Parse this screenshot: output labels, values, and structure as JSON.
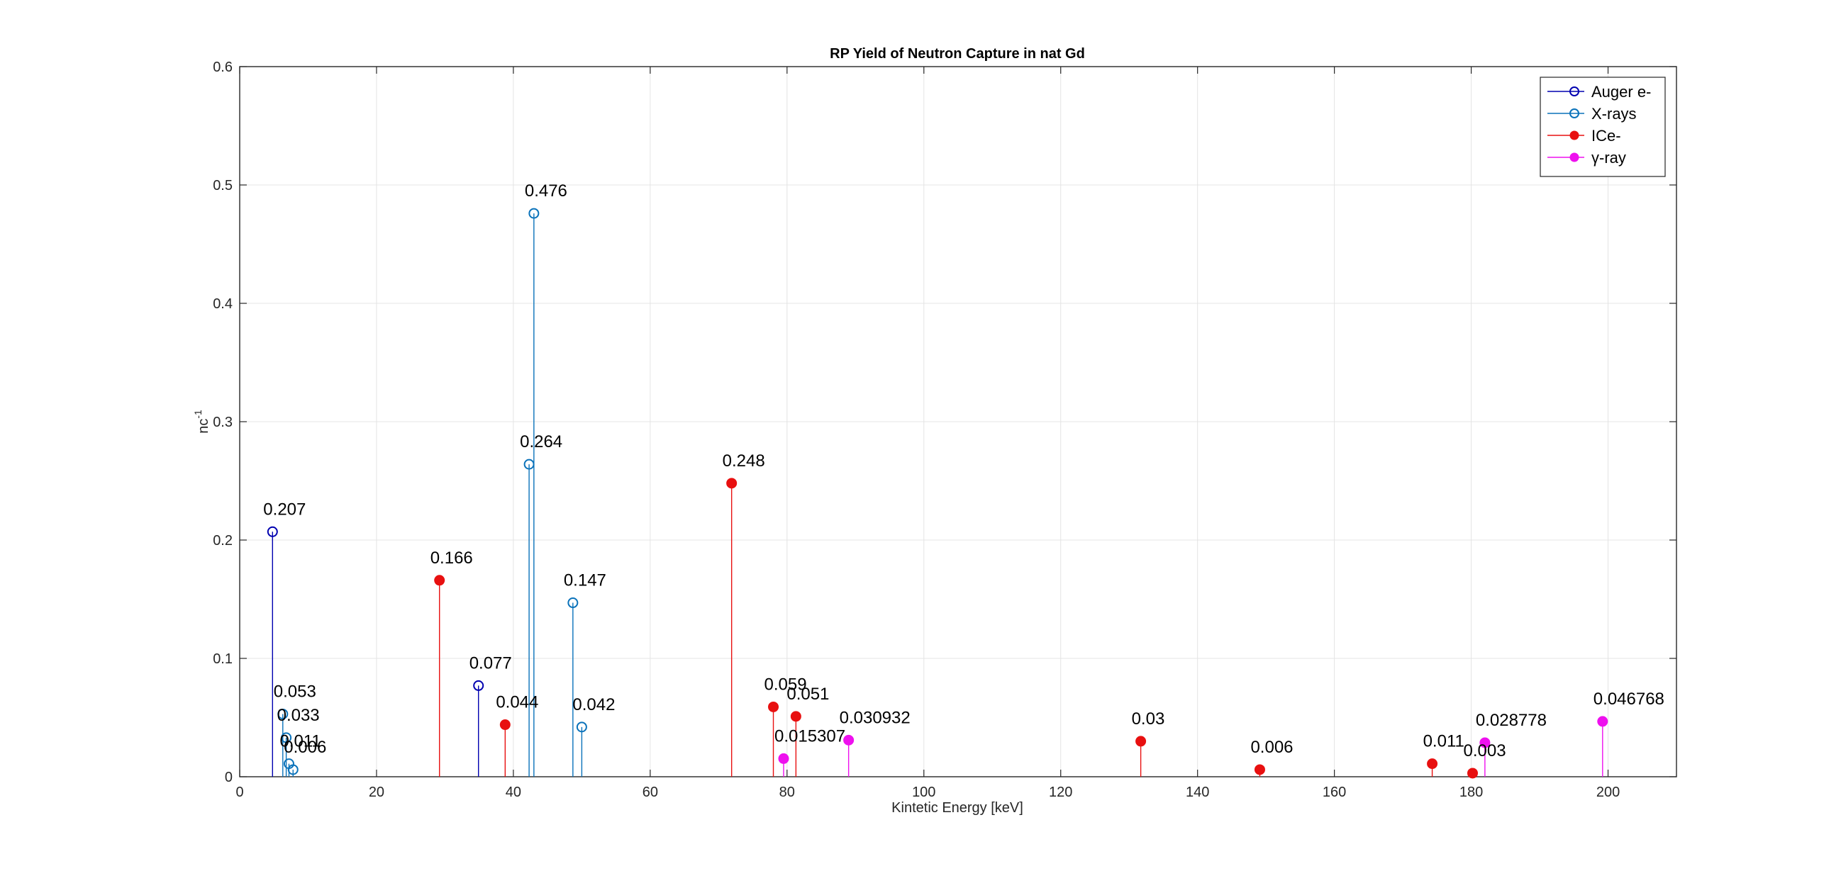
{
  "chart_data": {
    "type": "stem",
    "title": "RP Yield of Neutron Capture in nat Gd",
    "xlabel": "Kintetic Energy [keV]",
    "ylabel": {
      "base": "nc",
      "superscript": "-1"
    },
    "xlim": [
      0,
      210
    ],
    "ylim": [
      0,
      0.6
    ],
    "xticks": [
      0,
      20,
      40,
      60,
      80,
      100,
      120,
      140,
      160,
      180,
      200
    ],
    "yticks": [
      0,
      0.1,
      0.2,
      0.3,
      0.4,
      0.5,
      0.6
    ],
    "xtick_labels": [
      "0",
      "20",
      "40",
      "60",
      "80",
      "100",
      "120",
      "140",
      "160",
      "180",
      "200"
    ],
    "ytick_labels": [
      "0",
      "0.1",
      "0.2",
      "0.3",
      "0.4",
      "0.5",
      "0.6"
    ],
    "grid": true,
    "legend_position": "top-right",
    "series": [
      {
        "name": "Auger e-",
        "color": "#0000b0",
        "marker": "open-circle",
        "points": [
          {
            "x": 4.8,
            "y": 0.207,
            "label": "0.207"
          },
          {
            "x": 34.9,
            "y": 0.077,
            "label": "0.077"
          }
        ]
      },
      {
        "name": "X-rays",
        "color": "#0a72ba",
        "marker": "open-circle",
        "points": [
          {
            "x": 6.3,
            "y": 0.053,
            "label": "0.053"
          },
          {
            "x": 6.8,
            "y": 0.033,
            "label": "0.033"
          },
          {
            "x": 7.2,
            "y": 0.011,
            "label": "0.011"
          },
          {
            "x": 7.8,
            "y": 0.006,
            "label": "0.006"
          },
          {
            "x": 42.3,
            "y": 0.264,
            "label": "0.264"
          },
          {
            "x": 43.0,
            "y": 0.476,
            "label": "0.476"
          },
          {
            "x": 48.7,
            "y": 0.147,
            "label": "0.147"
          },
          {
            "x": 50.0,
            "y": 0.042,
            "label": "0.042"
          }
        ]
      },
      {
        "name": "ICe-",
        "color": "#e81010",
        "marker": "filled-circle",
        "points": [
          {
            "x": 29.2,
            "y": 0.166,
            "label": "0.166"
          },
          {
            "x": 38.8,
            "y": 0.044,
            "label": "0.044"
          },
          {
            "x": 71.9,
            "y": 0.248,
            "label": "0.248"
          },
          {
            "x": 78.0,
            "y": 0.059,
            "label": "0.059"
          },
          {
            "x": 81.3,
            "y": 0.051,
            "label": "0.051"
          },
          {
            "x": 131.7,
            "y": 0.03,
            "label": "0.03"
          },
          {
            "x": 149.1,
            "y": 0.006,
            "label": "0.006"
          },
          {
            "x": 174.3,
            "y": 0.011,
            "label": "0.011"
          },
          {
            "x": 180.2,
            "y": 0.003,
            "label": "0.003"
          }
        ]
      },
      {
        "name": "γ-ray",
        "color": "#ee10ee",
        "marker": "filled-circle",
        "points": [
          {
            "x": 79.5,
            "y": 0.015307,
            "label": "0.015307"
          },
          {
            "x": 89.0,
            "y": 0.030932,
            "label": "0.030932"
          },
          {
            "x": 182.0,
            "y": 0.028778,
            "label": "0.028778"
          },
          {
            "x": 199.2,
            "y": 0.046768,
            "label": "0.046768"
          }
        ]
      }
    ]
  }
}
